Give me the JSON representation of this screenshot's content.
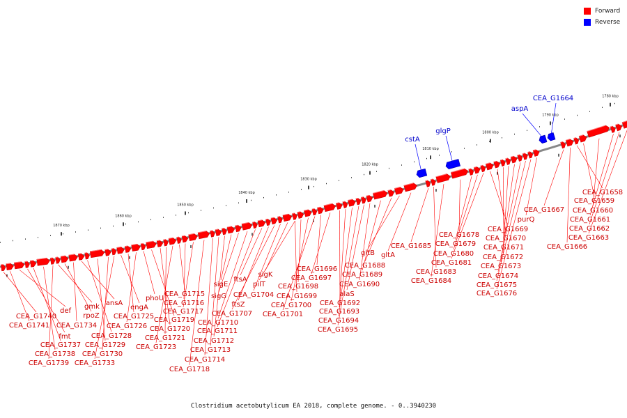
{
  "legend": [
    {
      "label": "Forward",
      "color": "#ff0000"
    },
    {
      "label": "Reverse",
      "color": "#0000ff"
    }
  ],
  "caption": "Clostridium acetobutylicum EA 2018, complete genome. - 0..3940230",
  "ticks": [
    {
      "label": "1870 kbp"
    },
    {
      "label": "1860 kbp"
    },
    {
      "label": "1850 kbp"
    },
    {
      "label": "1840 kbp"
    },
    {
      "label": "1830 kbp"
    },
    {
      "label": "1820 kbp"
    },
    {
      "label": "1810 kbp"
    },
    {
      "label": "1800 kbp"
    },
    {
      "label": "1790 kbp"
    },
    {
      "label": "1780 kbp"
    }
  ],
  "reverse_genes": [
    "cstA",
    "glgP",
    "aspA",
    "CEA_G1664"
  ],
  "forward_labels": [
    "CEA_G1740",
    "CEA_G1741",
    "def",
    "fmt",
    "CEA_G1737",
    "CEA_G1738",
    "CEA_G1739",
    "gmk",
    "rpoZ",
    "CEA_G1734",
    "ansA",
    "CEA_G1728",
    "CEA_G1729",
    "CEA_G1730",
    "CEA_G1733",
    "engA",
    "CEA_G1725",
    "CEA_G1726",
    "phoU",
    "CEA_G1719",
    "CEA_G1720",
    "CEA_G1721",
    "CEA_G1723",
    "CEA_G1715",
    "CEA_G1716",
    "CEA_G1717",
    "CEA_G1718",
    "CEA_G1714",
    "CEA_G1713",
    "CEA_G1712",
    "sigE",
    "sigG",
    "CEA_G1710",
    "CEA_G1711",
    "ftsA",
    "ftsZ",
    "CEA_G1707",
    "CEA_G1704",
    "sigK",
    "pilT",
    "CEA_G1699",
    "CEA_G1698",
    "CEA_G1700",
    "CEA_G1701",
    "CEA_G1696",
    "CEA_G1697",
    "CEA_G1692",
    "CEA_G1693",
    "CEA_G1694",
    "CEA_G1695",
    "alaS",
    "CEA_G1690",
    "CEA_G1689",
    "CEA_G1688",
    "gltB",
    "gltA",
    "CEA_G1685",
    "CEA_G1683",
    "CEA_G1684",
    "CEA_G1678",
    "CEA_G1679",
    "CEA_G1680",
    "CEA_G1681",
    "CEA_G1669",
    "CEA_G1670",
    "CEA_G1671",
    "CEA_G1672",
    "CEA_G1673",
    "CEA_G1674",
    "CEA_G1675",
    "CEA_G1676",
    "purQ",
    "CEA_G1667",
    "CEA_G1666",
    "CEA_G1658",
    "CEA_G1659",
    "CEA_G1660",
    "CEA_G1661",
    "CEA_G1662",
    "CEA_G1663"
  ]
}
